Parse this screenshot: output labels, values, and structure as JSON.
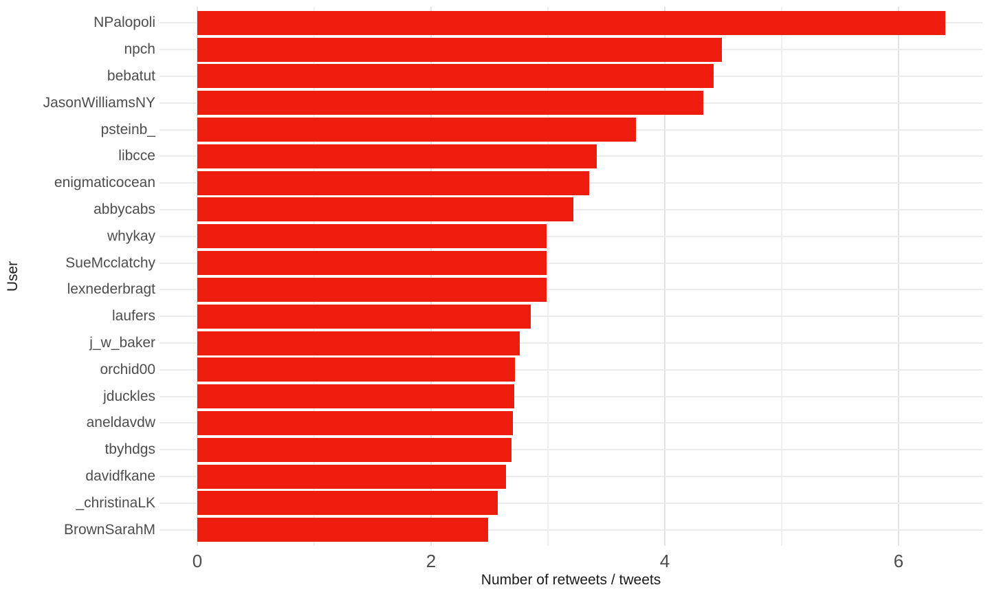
{
  "chart_data": {
    "type": "bar",
    "orientation": "horizontal",
    "title": "",
    "xlabel": "Number of retweets / tweets",
    "ylabel": "User",
    "categories": [
      "NPalopoli",
      "npch",
      "bebatut",
      "JasonWilliamsNY",
      "psteinb_",
      "libcce",
      "enigmaticocean",
      "abbycabs",
      "whykay",
      "SueMcclatchy",
      "lexnederbragt",
      "laufers",
      "j_w_baker",
      "orchid00",
      "jduckles",
      "aneldavdw",
      "tbyhdgs",
      "davidfkane",
      "_christinaLK",
      "BrownSarahM"
    ],
    "values": [
      6.4,
      4.49,
      4.42,
      4.33,
      3.75,
      3.42,
      3.35,
      3.22,
      2.99,
      2.99,
      2.99,
      2.85,
      2.76,
      2.72,
      2.71,
      2.7,
      2.69,
      2.64,
      2.57,
      2.49
    ],
    "x_ticks": [
      0,
      2,
      4,
      6
    ],
    "x_minor_ticks": [
      1,
      3,
      5
    ],
    "xlim": [
      -0.32,
      6.72
    ],
    "bar_color": "#ee1c0c",
    "grid": true,
    "gridline_color": "#ebebeb",
    "background": "#ffffff",
    "tick_label_color": "#4d4d4d",
    "axis_title_color": "#1a1a1a",
    "legend": "none"
  }
}
